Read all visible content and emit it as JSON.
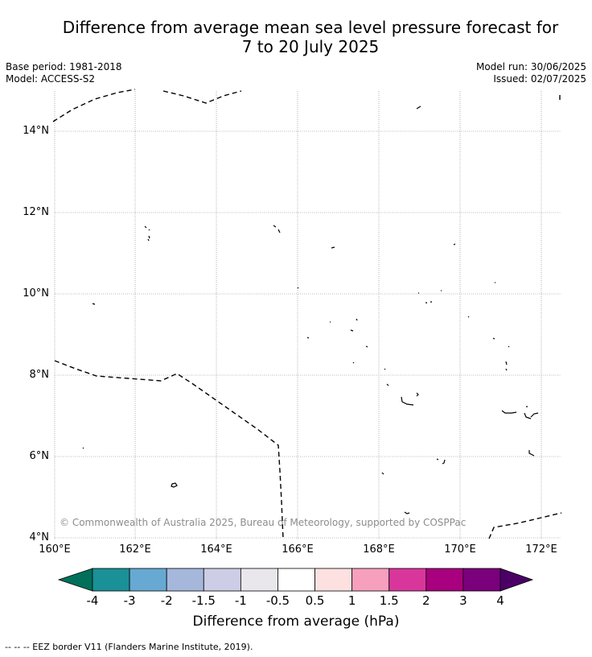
{
  "title": {
    "line1": "Difference from average mean sea level pressure forecast for",
    "line2": "7 to 20 July 2025"
  },
  "meta": {
    "base_period": "Base period: 1981-2018",
    "model": "Model: ACCESS-S2",
    "model_run": "Model run: 30/06/2025",
    "issued": "Issued: 02/07/2025"
  },
  "map": {
    "lat_labels": [
      "14°N",
      "12°N",
      "10°N",
      "8°N",
      "6°N",
      "4°N"
    ],
    "lon_labels": [
      "160°E",
      "162°E",
      "164°E",
      "166°E",
      "168°E",
      "170°E",
      "172°E"
    ],
    "copyright": "© Commonwealth of Australia 2025, Bureau of Meteorology, supported by COSPPac"
  },
  "colorbar": {
    "label": "Difference from average (hPa)",
    "ticks": [
      "-4",
      "-3",
      "-2",
      "-1.5",
      "-1",
      "-0.5",
      "0.5",
      "1",
      "1.5",
      "2",
      "3",
      "4"
    ],
    "colors": [
      "#00705a",
      "#1a9196",
      "#67a9d2",
      "#a5b8dc",
      "#cdcde6",
      "#e9e7ec",
      "#ffffff",
      "#fde1e1",
      "#f6a0bd",
      "#d9369c",
      "#a8007e",
      "#7a007c",
      "#4b0066"
    ]
  },
  "footnote": "--  --  -- EEZ border V11 (Flanders Marine Institute, 2019)."
}
